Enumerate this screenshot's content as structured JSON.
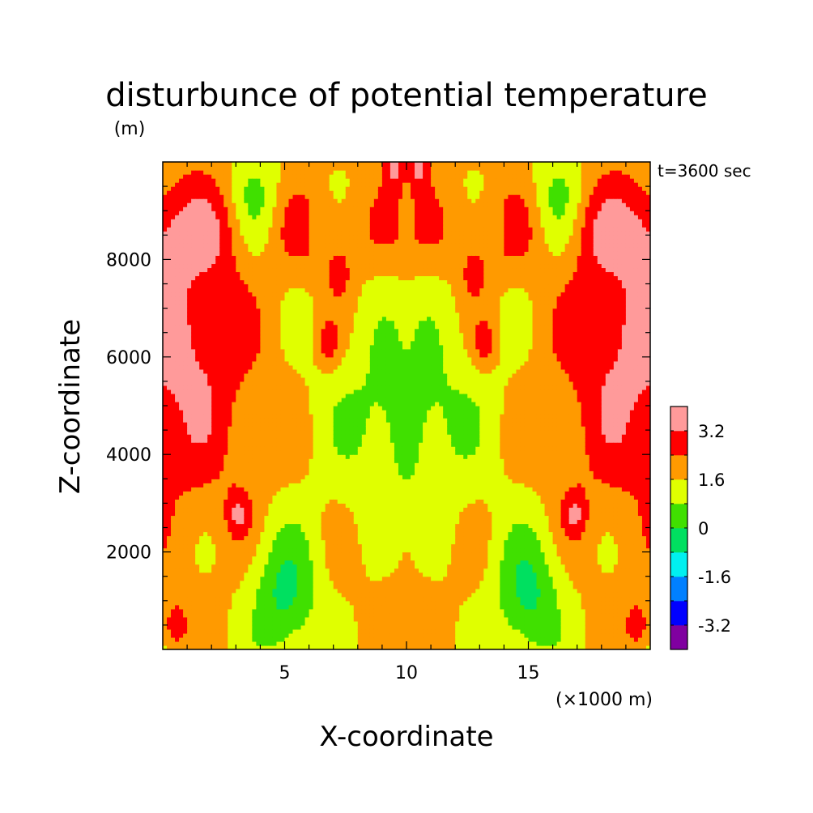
{
  "chart_data": {
    "type": "heatmap",
    "title": "disturbunce of potential temperature",
    "time_label": "t=3600 sec",
    "xlabel": "X-coordinate",
    "x_unit_label": "(×1000 m)",
    "ylabel": "Z-coordinate",
    "y_unit_label": "(m)",
    "xlim": [
      0,
      20
    ],
    "ylim": [
      0,
      10000
    ],
    "x_ticks": [
      5,
      10,
      15
    ],
    "x_tick_labels": [
      "5",
      "10",
      "15"
    ],
    "y_ticks": [
      2000,
      4000,
      6000,
      8000
    ],
    "y_tick_labels": [
      "2000",
      "4000",
      "6000",
      "8000"
    ],
    "colorbar": {
      "levels": [
        -4.0,
        -3.2,
        -2.4,
        -1.6,
        -0.8,
        0.0,
        0.8,
        1.6,
        2.4,
        3.2,
        4.0
      ],
      "tick_labels": [
        "3.2",
        "1.6",
        "0",
        "-1.6",
        "-3.2"
      ],
      "tick_values": [
        3.2,
        1.6,
        0.0,
        -1.6,
        -3.2
      ],
      "colors": [
        "#8000a0",
        "#0000ff",
        "#0080ff",
        "#00f0f0",
        "#00e060",
        "#40e000",
        "#e0ff00",
        "#ff9a00",
        "#ff0000",
        "#ff9a9a"
      ]
    },
    "field_description": "Symmetric about x=10; bottom/top boundaries, warm lobes at z~4000-7000 on both sides, cool plume near center",
    "grid": false
  }
}
